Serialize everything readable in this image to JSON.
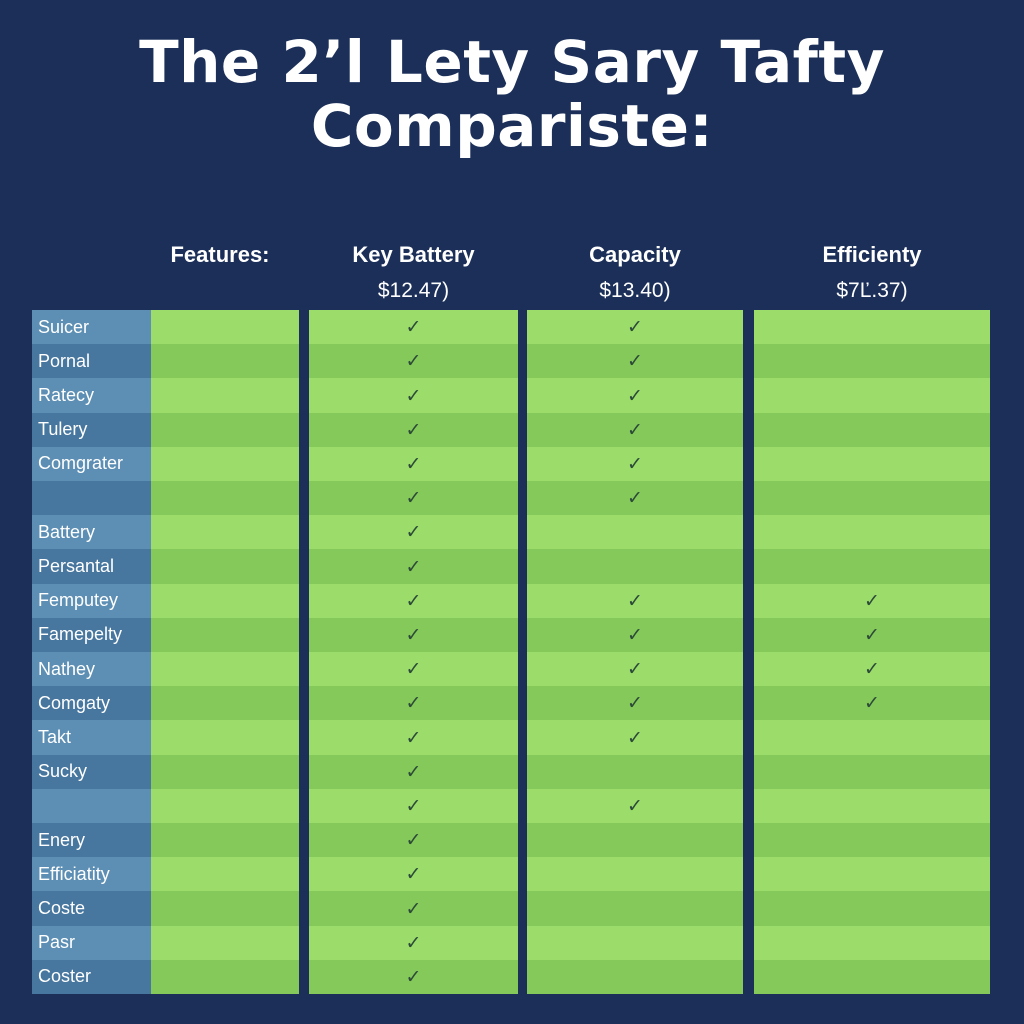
{
  "title": {
    "line1": "The  2’l Lety Sary Tafty",
    "line2": "Compariste:"
  },
  "headers": {
    "features": "Features:",
    "columns": [
      {
        "name": "Key Battery",
        "price": "$12.47)"
      },
      {
        "name": "Capacity",
        "price": "$13.40)"
      },
      {
        "name": "Efficienty",
        "price": "$7Ľ.37)"
      }
    ]
  },
  "check_glyph": "✓",
  "rows": [
    {
      "label": "Suicer",
      "checks": [
        true,
        true,
        false
      ]
    },
    {
      "label": "Pornal",
      "checks": [
        true,
        true,
        false
      ]
    },
    {
      "label": "Ratecy",
      "checks": [
        true,
        true,
        false
      ]
    },
    {
      "label": "Tulery",
      "checks": [
        true,
        true,
        false
      ]
    },
    {
      "label": "Comgrater",
      "checks": [
        true,
        true,
        false
      ]
    },
    {
      "label": "",
      "checks": [
        true,
        true,
        false
      ]
    },
    {
      "label": "Battery",
      "checks": [
        true,
        false,
        false
      ]
    },
    {
      "label": "Persantal",
      "checks": [
        true,
        false,
        false
      ]
    },
    {
      "label": "Femputey",
      "checks": [
        true,
        true,
        true
      ]
    },
    {
      "label": "Famepelty",
      "checks": [
        true,
        true,
        true
      ]
    },
    {
      "label": "Nathey",
      "checks": [
        true,
        true,
        true
      ]
    },
    {
      "label": "Comgaty",
      "checks": [
        true,
        true,
        true
      ]
    },
    {
      "label": "Takt",
      "checks": [
        true,
        true,
        false
      ]
    },
    {
      "label": "Sucky",
      "checks": [
        true,
        false,
        false
      ]
    },
    {
      "label": "",
      "checks": [
        true,
        true,
        false
      ]
    },
    {
      "label": "Enery",
      "checks": [
        true,
        false,
        false
      ]
    },
    {
      "label": "Efficiatity",
      "checks": [
        true,
        false,
        false
      ]
    },
    {
      "label": "Coste",
      "checks": [
        true,
        false,
        false
      ]
    },
    {
      "label": "Pasr",
      "checks": [
        true,
        false,
        false
      ]
    },
    {
      "label": "Coster",
      "checks": [
        true,
        false,
        false
      ]
    }
  ],
  "colors": {
    "background": "#1b2f59",
    "label_light": "#5d8fb4",
    "label_dark": "#47769e",
    "green_light": "#9bdc6a",
    "green_dark": "#85c95a",
    "check": "#2c4a38"
  }
}
